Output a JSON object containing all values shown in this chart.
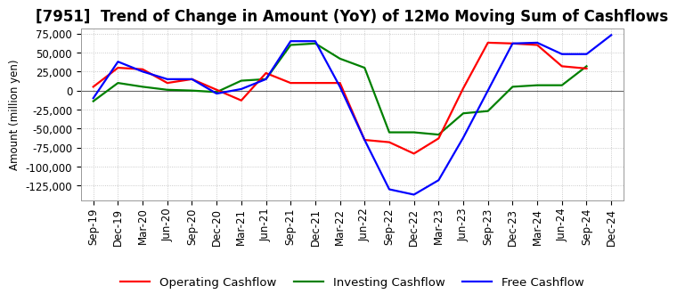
{
  "title": "[7951]  Trend of Change in Amount (YoY) of 12Mo Moving Sum of Cashflows",
  "ylabel": "Amount (million yen)",
  "x_labels": [
    "Sep-19",
    "Dec-19",
    "Mar-20",
    "Jun-20",
    "Sep-20",
    "Dec-20",
    "Mar-21",
    "Jun-21",
    "Sep-21",
    "Dec-21",
    "Mar-22",
    "Jun-22",
    "Sep-22",
    "Dec-22",
    "Mar-23",
    "Jun-23",
    "Sep-23",
    "Dec-23",
    "Mar-24",
    "Jun-24",
    "Sep-24",
    "Dec-24"
  ],
  "operating": [
    5000,
    30000,
    28000,
    10000,
    15000,
    1000,
    -13000,
    23000,
    10000,
    10000,
    10000,
    -65000,
    -68000,
    -83000,
    -63000,
    3000,
    63000,
    62000,
    60000,
    32000,
    29000,
    null
  ],
  "investing": [
    -14000,
    10000,
    5000,
    1000,
    0,
    -2000,
    13000,
    15000,
    60000,
    62000,
    42000,
    30000,
    -55000,
    -55000,
    -58000,
    -30000,
    -27000,
    5000,
    7000,
    7000,
    32000,
    null
  ],
  "free": [
    -10000,
    38000,
    25000,
    15000,
    15000,
    -4000,
    2000,
    15000,
    65000,
    65000,
    5000,
    -65000,
    -130000,
    -137000,
    -118000,
    -62000,
    0,
    62000,
    63000,
    48000,
    48000,
    73000
  ],
  "ylim": [
    -145000,
    82000
  ],
  "yticks": [
    -125000,
    -100000,
    -75000,
    -50000,
    -25000,
    0,
    25000,
    50000,
    75000
  ],
  "operating_color": "#FF0000",
  "investing_color": "#008000",
  "free_color": "#0000FF",
  "bg_color": "#FFFFFF",
  "grid_color": "#BBBBBB",
  "title_fontsize": 12,
  "axis_fontsize": 8.5,
  "legend_fontsize": 9.5
}
